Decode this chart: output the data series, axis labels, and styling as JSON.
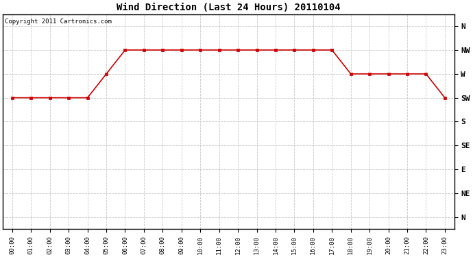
{
  "title": "Wind Direction (Last 24 Hours) 20110104",
  "copyright_text": "Copyright 2011 Cartronics.com",
  "background_color": "#ffffff",
  "plot_bg_color": "#ffffff",
  "grid_color": "#c8c8c8",
  "line_color": "#cc0000",
  "marker_color": "#cc0000",
  "hours": [
    0,
    1,
    2,
    3,
    4,
    5,
    6,
    7,
    8,
    9,
    10,
    11,
    12,
    13,
    14,
    15,
    16,
    17,
    18,
    19,
    20,
    21,
    22,
    23
  ],
  "wind_values": [
    6,
    6,
    6,
    6,
    6,
    7,
    8,
    8,
    8,
    8,
    8,
    8,
    8,
    8,
    8,
    8,
    8,
    8,
    7,
    7,
    7,
    7,
    7,
    6
  ],
  "ytick_positions": [
    9,
    8,
    7,
    6,
    5,
    4,
    3,
    2,
    1
  ],
  "ytick_labels": [
    "N",
    "NW",
    "W",
    "SW",
    "S",
    "SE",
    "E",
    "NE",
    "N"
  ],
  "ylim": [
    0.5,
    9.5
  ],
  "xlim": [
    -0.5,
    23.5
  ],
  "xtick_labels": [
    "00:00",
    "01:00",
    "02:00",
    "03:00",
    "04:00",
    "05:00",
    "06:00",
    "07:00",
    "08:00",
    "09:00",
    "10:00",
    "11:00",
    "12:00",
    "13:00",
    "14:00",
    "15:00",
    "16:00",
    "17:00",
    "18:00",
    "19:00",
    "20:00",
    "21:00",
    "22:00",
    "23:00"
  ],
  "figsize": [
    6.9,
    3.75
  ],
  "dpi": 100
}
